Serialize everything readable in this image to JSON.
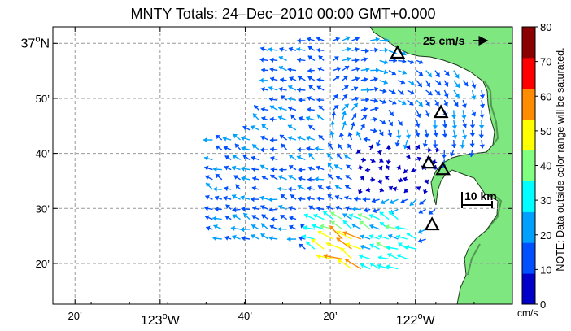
{
  "title": "MNTY Totals: 24–Dec–2010 00:00 GMT+0.000",
  "lat_labels": [
    {
      "deg": "37",
      "sup": "o",
      "suffix": "N",
      "lat": 37.0
    },
    {
      "text": "50’",
      "lat": 36.8333
    },
    {
      "text": "40’",
      "lat": 36.6667
    },
    {
      "text": "30’",
      "lat": 36.5
    },
    {
      "text": "20’",
      "lat": 36.3333
    }
  ],
  "lon_labels": [
    {
      "text": "20’",
      "lon": -123.3333
    },
    {
      "deg": "123",
      "sup": "o",
      "suffix": "W",
      "lon": -123.0
    },
    {
      "text": "40’",
      "lon": -122.6667
    },
    {
      "text": "20’",
      "lon": -122.3333
    },
    {
      "deg": "122",
      "sup": "o",
      "suffix": "W",
      "lon": -122.0
    }
  ],
  "reference_vector": {
    "label": "25 cm/s",
    "speed_cm_s": 25
  },
  "scale_bar": {
    "label": "10 km",
    "distance_km": 10
  },
  "colorbar": {
    "units": "cm/s",
    "ticks": [
      "0",
      "10",
      "20",
      "30",
      "40",
      "50",
      "60",
      "70",
      "80"
    ],
    "range": [
      0,
      80
    ],
    "colors": [
      "#0000c8",
      "#0050ff",
      "#00a0ff",
      "#00ffff",
      "#80ff80",
      "#ffff00",
      "#ff8c00",
      "#ff0000",
      "#8b0000"
    ]
  },
  "note": "NOTE: Data outside color range will be saturated.",
  "map_extent": {
    "lon": [
      -123.42,
      -121.62
    ],
    "lat": [
      36.21,
      37.05
    ]
  },
  "colors": {
    "land": "#7fe77f",
    "coast": "#1a3a1a",
    "grid": "#888888"
  },
  "sites": [
    {
      "name": "site-1",
      "lon": -122.07,
      "lat": 36.97
    },
    {
      "name": "site-2",
      "lon": -121.9,
      "lat": 36.79
    },
    {
      "name": "site-3",
      "lon": -121.948,
      "lat": 36.637
    },
    {
      "name": "site-4",
      "lon": -121.892,
      "lat": 36.617
    },
    {
      "name": "site-5",
      "lon": -121.935,
      "lat": 36.45
    }
  ]
}
